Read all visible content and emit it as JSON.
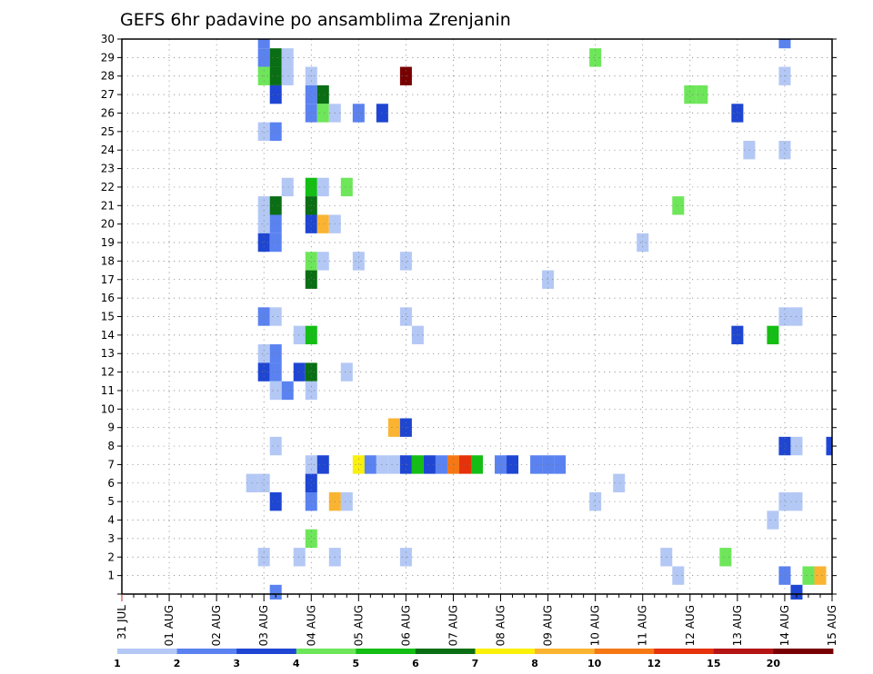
{
  "chart_data": {
    "type": "heatmap",
    "title": "GEFS 6hr padavine po ansamblima Zrenjanin",
    "xlabel": "",
    "ylabel": "",
    "x_tick_labels": [
      "31 JUL",
      "01 AUG",
      "02 AUG",
      "03 AUG",
      "04 AUG",
      "05 AUG",
      "06 AUG",
      "07 AUG",
      "08 AUG",
      "09 AUG",
      "10 AUG",
      "11 AUG",
      "12 AUG",
      "13 AUG",
      "14 AUG",
      "15 AUG"
    ],
    "x_range_days": [
      0,
      15
    ],
    "y_range": [
      0,
      30
    ],
    "y_tick_labels": [
      "1",
      "2",
      "3",
      "4",
      "5",
      "6",
      "7",
      "8",
      "9",
      "10",
      "11",
      "12",
      "13",
      "14",
      "15",
      "16",
      "17",
      "18",
      "19",
      "20",
      "21",
      "22",
      "23",
      "24",
      "25",
      "26",
      "27",
      "28",
      "29",
      "30"
    ],
    "grid": true,
    "colorbar": {
      "position": "bottom",
      "thresholds": [
        1,
        2,
        3,
        4,
        5,
        6,
        7,
        8,
        10,
        12,
        15,
        20
      ],
      "colors": [
        "#b4c8f5",
        "#5a82f0",
        "#1e46d2",
        "#6ee65a",
        "#14be14",
        "#0a6e14",
        "#faf00a",
        "#fab432",
        "#f57814",
        "#e6320a",
        "#b41414",
        "#780000"
      ]
    },
    "cells_note_units": "x in days after 31 JUL 00UTC (6h steps), y = ensemble member, c = color class index 0-11",
    "cells": [
      {
        "x": 3.0,
        "y": 30,
        "c": 1
      },
      {
        "x": 14.0,
        "y": 30,
        "c": 1
      },
      {
        "x": 3.0,
        "y": 29,
        "c": 1
      },
      {
        "x": 3.25,
        "y": 29,
        "c": 5
      },
      {
        "x": 3.5,
        "y": 29,
        "c": 0
      },
      {
        "x": 10.0,
        "y": 29,
        "c": 3
      },
      {
        "x": 3.0,
        "y": 28,
        "c": 3
      },
      {
        "x": 3.25,
        "y": 28,
        "c": 5
      },
      {
        "x": 3.5,
        "y": 28,
        "c": 0
      },
      {
        "x": 4.0,
        "y": 28,
        "c": 0
      },
      {
        "x": 6.0,
        "y": 28,
        "c": 11
      },
      {
        "x": 14.0,
        "y": 28,
        "c": 0
      },
      {
        "x": 3.25,
        "y": 27,
        "c": 2
      },
      {
        "x": 4.0,
        "y": 27,
        "c": 1
      },
      {
        "x": 4.25,
        "y": 27,
        "c": 5
      },
      {
        "x": 12.0,
        "y": 27,
        "c": 3
      },
      {
        "x": 12.25,
        "y": 27,
        "c": 3
      },
      {
        "x": 4.0,
        "y": 26,
        "c": 1
      },
      {
        "x": 4.25,
        "y": 26,
        "c": 3
      },
      {
        "x": 4.5,
        "y": 26,
        "c": 0
      },
      {
        "x": 5.0,
        "y": 26,
        "c": 1
      },
      {
        "x": 5.5,
        "y": 26,
        "c": 2
      },
      {
        "x": 13.0,
        "y": 26,
        "c": 2
      },
      {
        "x": 3.0,
        "y": 25,
        "c": 0
      },
      {
        "x": 3.25,
        "y": 25,
        "c": 1
      },
      {
        "x": 13.25,
        "y": 24,
        "c": 0
      },
      {
        "x": 14.0,
        "y": 24,
        "c": 0
      },
      {
        "x": 3.5,
        "y": 22,
        "c": 0
      },
      {
        "x": 4.0,
        "y": 22,
        "c": 4
      },
      {
        "x": 4.25,
        "y": 22,
        "c": 0
      },
      {
        "x": 4.75,
        "y": 22,
        "c": 3
      },
      {
        "x": 3.0,
        "y": 21,
        "c": 0
      },
      {
        "x": 3.25,
        "y": 21,
        "c": 5
      },
      {
        "x": 4.0,
        "y": 21,
        "c": 5
      },
      {
        "x": 11.75,
        "y": 21,
        "c": 3
      },
      {
        "x": 3.0,
        "y": 20,
        "c": 0
      },
      {
        "x": 3.25,
        "y": 20,
        "c": 1
      },
      {
        "x": 4.0,
        "y": 20,
        "c": 2
      },
      {
        "x": 4.25,
        "y": 20,
        "c": 7
      },
      {
        "x": 4.5,
        "y": 20,
        "c": 0
      },
      {
        "x": 3.0,
        "y": 19,
        "c": 2
      },
      {
        "x": 3.25,
        "y": 19,
        "c": 1
      },
      {
        "x": 11.0,
        "y": 19,
        "c": 0
      },
      {
        "x": 4.0,
        "y": 18,
        "c": 3
      },
      {
        "x": 4.25,
        "y": 18,
        "c": 0
      },
      {
        "x": 5.0,
        "y": 18,
        "c": 0
      },
      {
        "x": 6.0,
        "y": 18,
        "c": 0
      },
      {
        "x": 4.0,
        "y": 17,
        "c": 5
      },
      {
        "x": 9.0,
        "y": 17,
        "c": 0
      },
      {
        "x": 3.0,
        "y": 15,
        "c": 1
      },
      {
        "x": 3.25,
        "y": 15,
        "c": 0
      },
      {
        "x": 6.0,
        "y": 15,
        "c": 0
      },
      {
        "x": 14.0,
        "y": 15,
        "c": 0
      },
      {
        "x": 14.25,
        "y": 15,
        "c": 0
      },
      {
        "x": 3.75,
        "y": 14,
        "c": 0
      },
      {
        "x": 4.0,
        "y": 14,
        "c": 4
      },
      {
        "x": 6.25,
        "y": 14,
        "c": 0
      },
      {
        "x": 13.0,
        "y": 14,
        "c": 2
      },
      {
        "x": 13.75,
        "y": 14,
        "c": 4
      },
      {
        "x": 3.0,
        "y": 13,
        "c": 0
      },
      {
        "x": 3.25,
        "y": 13,
        "c": 1
      },
      {
        "x": 3.0,
        "y": 12,
        "c": 2
      },
      {
        "x": 3.25,
        "y": 12,
        "c": 1
      },
      {
        "x": 3.75,
        "y": 12,
        "c": 2
      },
      {
        "x": 4.0,
        "y": 12,
        "c": 5
      },
      {
        "x": 4.75,
        "y": 12,
        "c": 0
      },
      {
        "x": 3.25,
        "y": 11,
        "c": 0
      },
      {
        "x": 3.5,
        "y": 11,
        "c": 1
      },
      {
        "x": 4.0,
        "y": 11,
        "c": 0
      },
      {
        "x": 5.75,
        "y": 9,
        "c": 7
      },
      {
        "x": 6.0,
        "y": 9,
        "c": 2
      },
      {
        "x": 3.25,
        "y": 8,
        "c": 0
      },
      {
        "x": 14.0,
        "y": 8,
        "c": 2
      },
      {
        "x": 14.25,
        "y": 8,
        "c": 0
      },
      {
        "x": 15.0,
        "y": 8,
        "c": 2
      },
      {
        "x": 4.0,
        "y": 7,
        "c": 0
      },
      {
        "x": 4.25,
        "y": 7,
        "c": 2
      },
      {
        "x": 5.0,
        "y": 7,
        "c": 6
      },
      {
        "x": 5.25,
        "y": 7,
        "c": 1
      },
      {
        "x": 5.5,
        "y": 7,
        "c": 0
      },
      {
        "x": 5.75,
        "y": 7,
        "c": 0
      },
      {
        "x": 6.0,
        "y": 7,
        "c": 2
      },
      {
        "x": 6.25,
        "y": 7,
        "c": 4
      },
      {
        "x": 6.5,
        "y": 7,
        "c": 2
      },
      {
        "x": 6.75,
        "y": 7,
        "c": 1
      },
      {
        "x": 7.0,
        "y": 7,
        "c": 8
      },
      {
        "x": 7.25,
        "y": 7,
        "c": 9
      },
      {
        "x": 7.5,
        "y": 7,
        "c": 4
      },
      {
        "x": 8.0,
        "y": 7,
        "c": 1
      },
      {
        "x": 8.25,
        "y": 7,
        "c": 2
      },
      {
        "x": 8.75,
        "y": 7,
        "c": 1
      },
      {
        "x": 9.0,
        "y": 7,
        "c": 1
      },
      {
        "x": 9.25,
        "y": 7,
        "c": 1
      },
      {
        "x": 2.75,
        "y": 6,
        "c": 0
      },
      {
        "x": 3.0,
        "y": 6,
        "c": 0
      },
      {
        "x": 4.0,
        "y": 6,
        "c": 2
      },
      {
        "x": 10.5,
        "y": 6,
        "c": 0
      },
      {
        "x": 3.25,
        "y": 5,
        "c": 2
      },
      {
        "x": 4.0,
        "y": 5,
        "c": 1
      },
      {
        "x": 4.5,
        "y": 5,
        "c": 7
      },
      {
        "x": 4.75,
        "y": 5,
        "c": 0
      },
      {
        "x": 10.0,
        "y": 5,
        "c": 0
      },
      {
        "x": 14.0,
        "y": 5,
        "c": 0
      },
      {
        "x": 14.25,
        "y": 5,
        "c": 0
      },
      {
        "x": 13.75,
        "y": 4,
        "c": 0
      },
      {
        "x": 4.0,
        "y": 3,
        "c": 3
      },
      {
        "x": 3.0,
        "y": 2,
        "c": 0
      },
      {
        "x": 3.75,
        "y": 2,
        "c": 0
      },
      {
        "x": 4.5,
        "y": 2,
        "c": 0
      },
      {
        "x": 6.0,
        "y": 2,
        "c": 0
      },
      {
        "x": 11.5,
        "y": 2,
        "c": 0
      },
      {
        "x": 12.75,
        "y": 2,
        "c": 3
      },
      {
        "x": 11.75,
        "y": 1,
        "c": 0
      },
      {
        "x": 14.0,
        "y": 1,
        "c": 1
      },
      {
        "x": 14.5,
        "y": 1,
        "c": 3
      },
      {
        "x": 14.75,
        "y": 1,
        "c": 7
      },
      {
        "x": 3.25,
        "y": 0,
        "c": 1
      },
      {
        "x": 14.25,
        "y": 0,
        "c": 2
      }
    ]
  }
}
